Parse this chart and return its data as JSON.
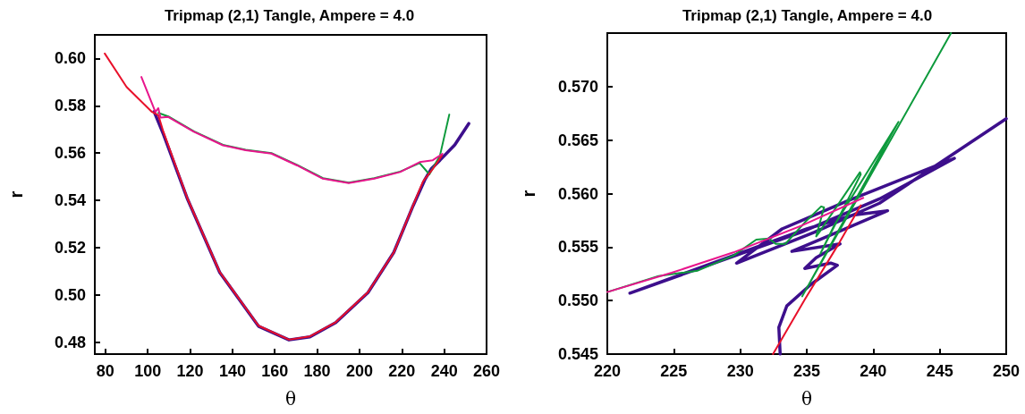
{
  "chart_data": [
    {
      "type": "line",
      "title": "Tripmap (2,1) Tangle, Ampere = 4.0",
      "xlabel": "θ",
      "ylabel": "r",
      "xlim": [
        75,
        260
      ],
      "xticks": [
        80,
        100,
        120,
        140,
        160,
        180,
        200,
        220,
        240,
        260
      ],
      "ylim": [
        0.475,
        0.61
      ],
      "yticks": [
        {
          "value": 0.48,
          "label": "0.48"
        },
        {
          "value": 0.5,
          "label": "0.50"
        },
        {
          "value": 0.52,
          "label": "0.52"
        },
        {
          "value": 0.54,
          "label": "0.54"
        },
        {
          "value": 0.56,
          "label": "0.56"
        },
        {
          "value": 0.58,
          "label": "0.58"
        },
        {
          "value": 0.6,
          "label": "0.60"
        }
      ],
      "series": [
        {
          "color": "#3d0f8c",
          "x": [
            103,
            107.4,
            118.8,
            134,
            152.3,
            166.7,
            176.6,
            188.8,
            204,
            216.2,
            225.3,
            231,
            234,
            238,
            245,
            251.6
          ],
          "values": [
            0.5775,
            0.568,
            0.5405,
            0.5095,
            0.4868,
            0.481,
            0.4823,
            0.4883,
            0.501,
            0.518,
            0.5377,
            0.549,
            0.5535,
            0.557,
            0.5635,
            0.5725
          ]
        },
        {
          "color": "#0d9a3c",
          "x": [
            105,
            109.7,
            121.8,
            135.5,
            146.2,
            158.4,
            170.5,
            182.7,
            194.9,
            207,
            219.2,
            228.4,
            233,
            238,
            242.4
          ],
          "values": [
            0.577,
            0.5755,
            0.5692,
            0.5635,
            0.5614,
            0.56,
            0.555,
            0.5494,
            0.5475,
            0.5494,
            0.5522,
            0.5558,
            0.551,
            0.559,
            0.5763
          ]
        },
        {
          "color": "#e8102a",
          "x": [
            79.7,
            90,
            102,
            105,
            107.4,
            118.8,
            134,
            152.3,
            166.7,
            176.6,
            188.8,
            204,
            216.2,
            225.3,
            230,
            234.4,
            238.9
          ],
          "values": [
            0.6021,
            0.588,
            0.5774,
            0.576,
            0.569,
            0.5407,
            0.5097,
            0.487,
            0.4811,
            0.4825,
            0.4885,
            0.5012,
            0.518,
            0.5379,
            0.548,
            0.553,
            0.559
          ]
        },
        {
          "color": "#e8158c",
          "x": [
            97,
            103.6,
            105,
            106,
            109.7,
            121.8,
            135.5,
            146.2,
            158.4,
            170.5,
            182.7,
            194.9,
            207,
            219.2,
            228.4,
            234.6,
            239.2
          ],
          "values": [
            0.5922,
            0.5774,
            0.579,
            0.575,
            0.5753,
            0.569,
            0.5633,
            0.5612,
            0.5598,
            0.5548,
            0.5492,
            0.5473,
            0.5492,
            0.552,
            0.5562,
            0.557,
            0.5597
          ]
        }
      ]
    },
    {
      "type": "line",
      "title": "Tripmap (2,1) Tangle, Ampere = 4.0",
      "xlabel": "θ",
      "ylabel": "r",
      "xlim": [
        220,
        250
      ],
      "xticks": [
        220,
        225,
        230,
        235,
        240,
        245,
        250
      ],
      "ylim": [
        0.545,
        0.575
      ],
      "yticks": [
        {
          "value": 0.545,
          "label": "0.545"
        },
        {
          "value": 0.55,
          "label": "0.550"
        },
        {
          "value": 0.555,
          "label": "0.555"
        },
        {
          "value": 0.56,
          "label": "0.560"
        },
        {
          "value": 0.565,
          "label": "0.565"
        },
        {
          "value": 0.57,
          "label": "0.570"
        }
      ],
      "series": [
        {
          "color": "#3d0f8c",
          "x": [
            233.0,
            232.9,
            233.5,
            235.3,
            237.3,
            236.8,
            234.85,
            235.7,
            237.5,
            233.88,
            236,
            241.08,
            238.5,
            235.0,
            221.7,
            228.26,
            234.6,
            240.47,
            246.1,
            242.9,
            238.03,
            233.14,
            229.72,
            235.59,
            240.47,
            250
          ],
          "values": [
            0.545,
            0.5475,
            0.5495,
            0.5515,
            0.5533,
            0.5535,
            0.553,
            0.554,
            0.5553,
            0.5546,
            0.5557,
            0.5584,
            0.558,
            0.5567,
            0.5507,
            0.5536,
            0.5564,
            0.5595,
            0.5633,
            0.5617,
            0.5593,
            0.5567,
            0.5535,
            0.5564,
            0.5591,
            0.567
          ]
        },
        {
          "color": "#0d9a3c",
          "x": [
            220,
            223.86,
            226.8,
            229.48,
            231.2,
            232.17,
            232.66,
            233.39,
            234.85,
            236.08,
            236.3,
            235.71,
            235.95,
            239,
            239.06,
            236.03,
            237.05,
            241.9,
            241.8,
            234.66,
            245.85
          ],
          "values": [
            0.5508,
            0.5523,
            0.5528,
            0.5542,
            0.5557,
            0.5558,
            0.5553,
            0.5553,
            0.5573,
            0.5588,
            0.5587,
            0.556,
            0.5564,
            0.562,
            0.5618,
            0.5544,
            0.557,
            0.5667,
            0.5665,
            0.5504,
            0.575
          ]
        },
        {
          "color": "#e8102a",
          "x": [
            232.46,
            234.85,
            237.3,
            239.06
          ],
          "values": [
            0.545,
            0.5501,
            0.5551,
            0.5589
          ]
        },
        {
          "color": "#e8158c",
          "x": [
            220,
            224.84,
            229.48,
            234.6,
            239.25
          ],
          "values": [
            0.5508,
            0.5526,
            0.5545,
            0.557,
            0.5596
          ]
        }
      ]
    }
  ]
}
